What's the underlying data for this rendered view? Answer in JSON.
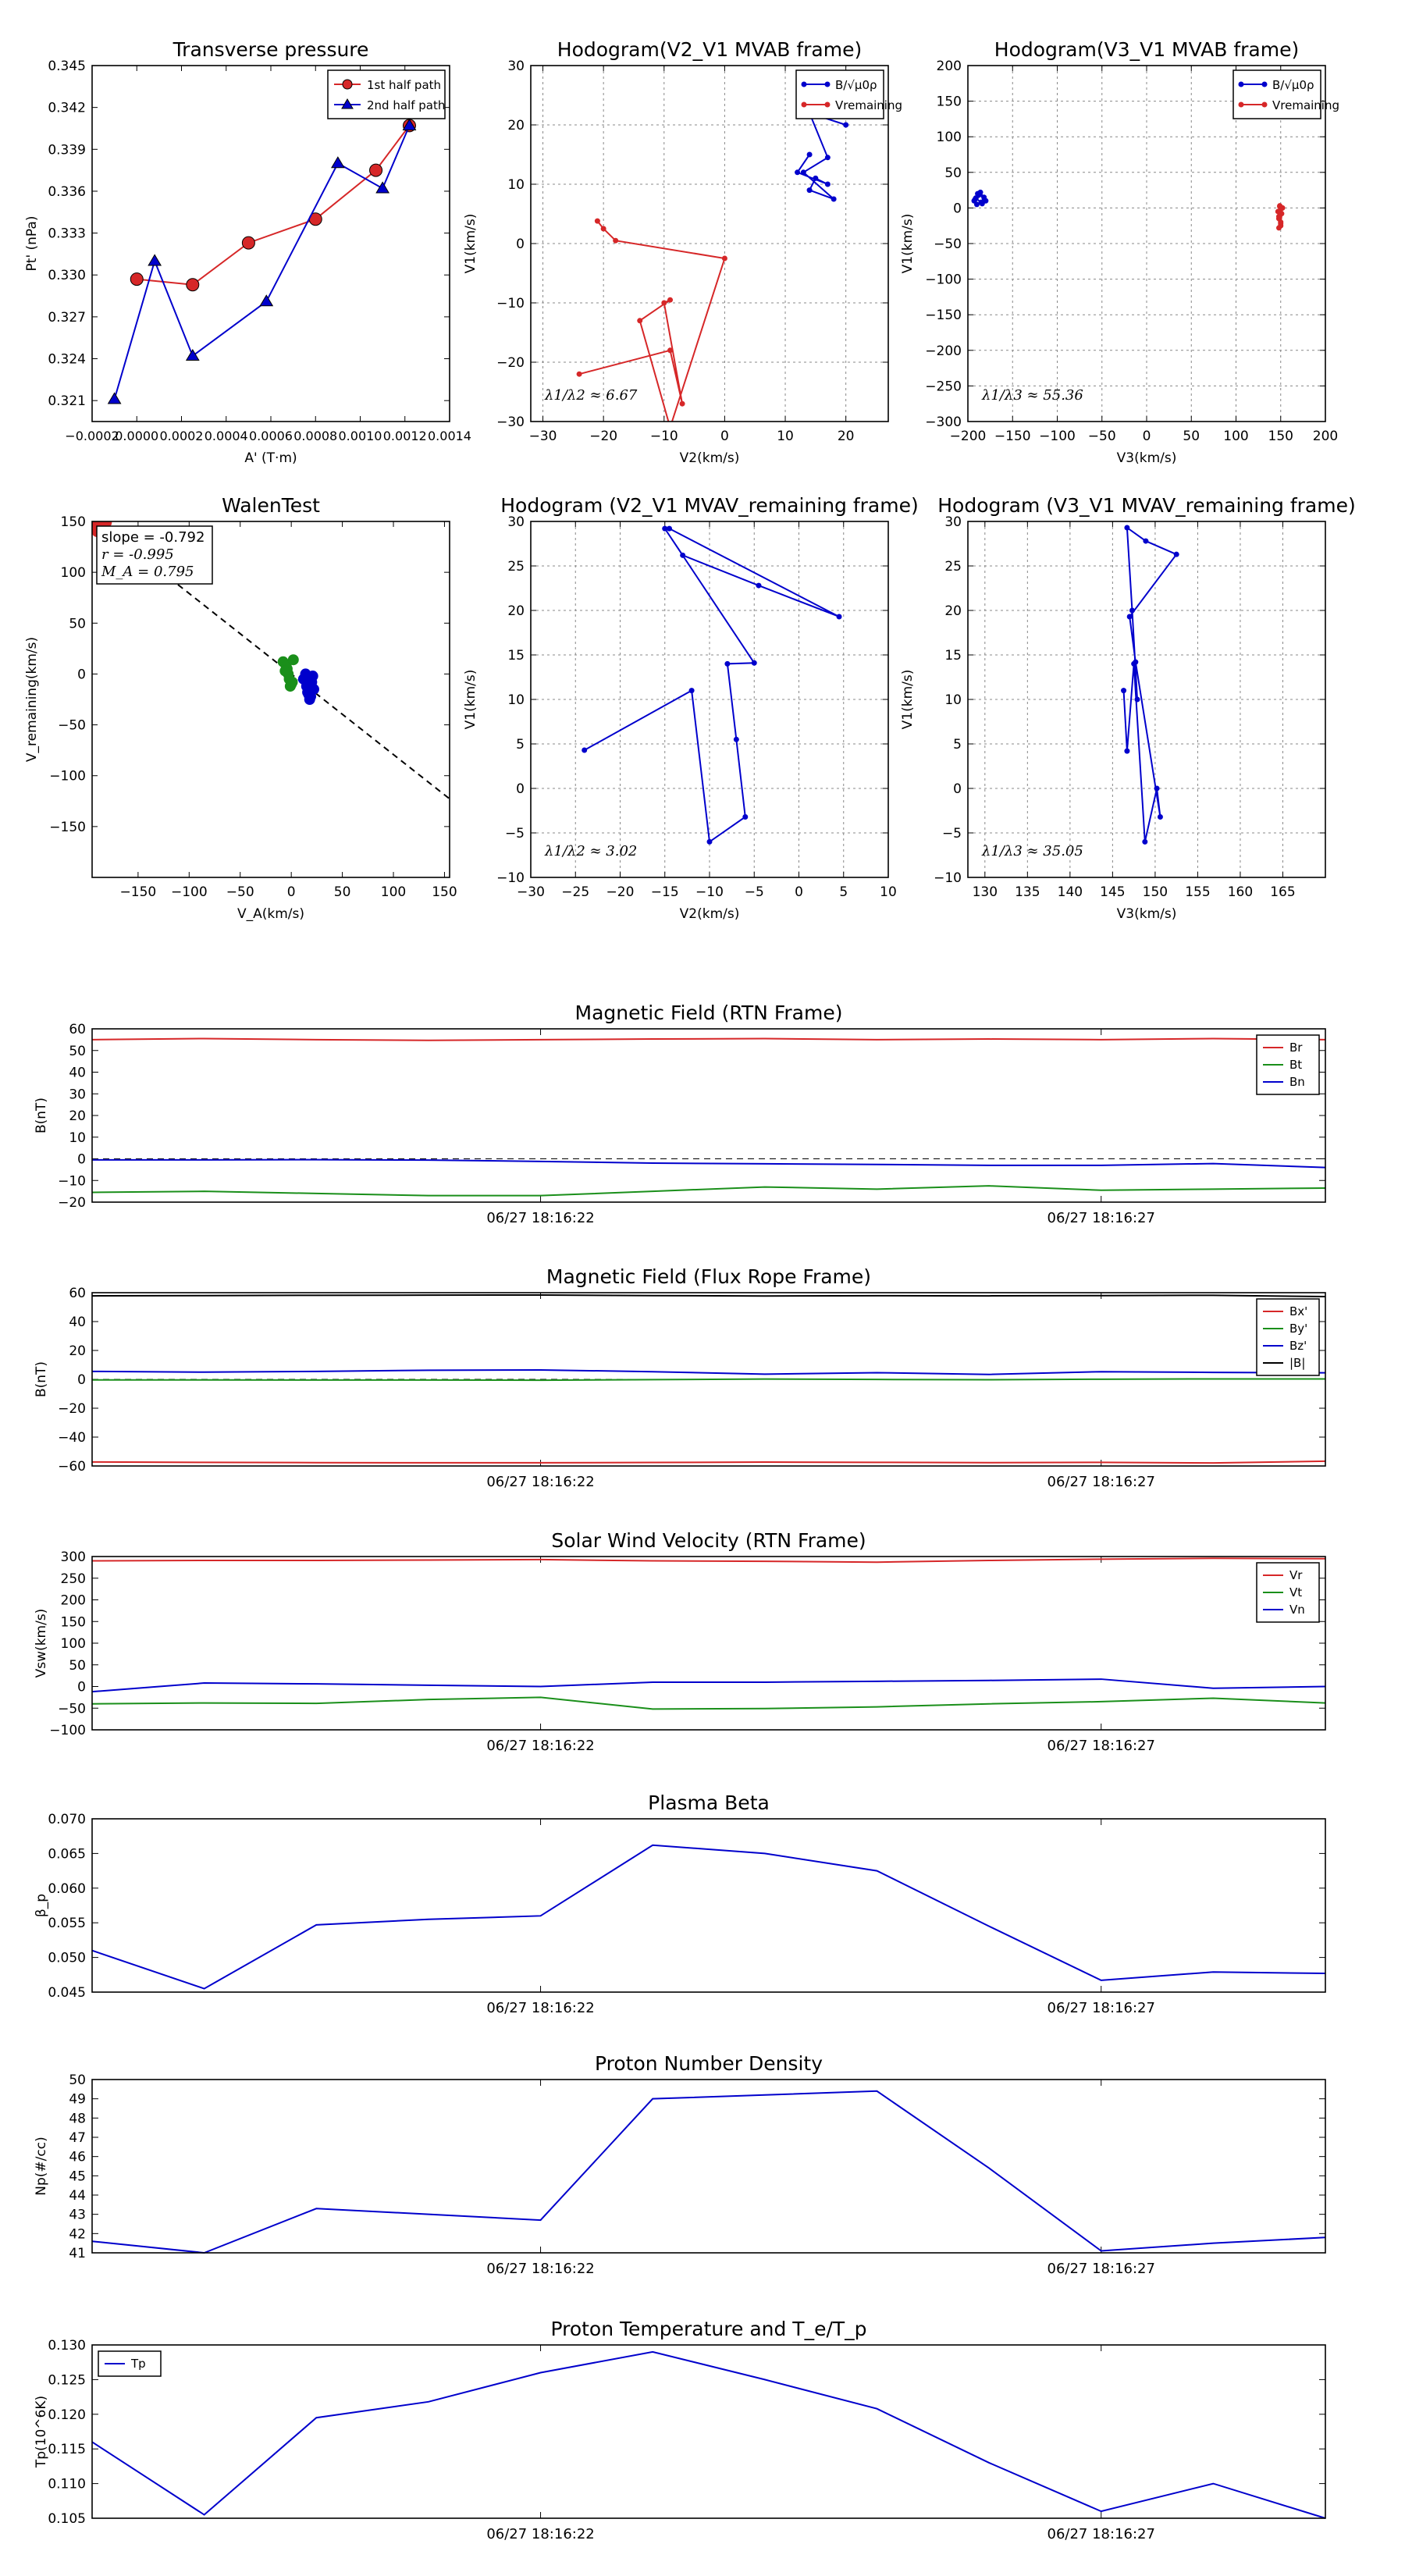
{
  "chart_data": [
    {
      "id": "tp",
      "type": "scatter",
      "title": "Transverse pressure",
      "xlabel": "A' (T·m)",
      "ylabel": "Pt' (nPa)",
      "xlim": [
        -0.0002,
        0.0014
      ],
      "ylim": [
        0.3195,
        0.345
      ],
      "xticks": [
        -0.0002,
        0.0,
        0.0002,
        0.0004,
        0.0006,
        0.0008,
        0.001,
        0.0012,
        0.0014
      ],
      "xticklabels": [
        "−0.0002",
        "0.0000",
        "0.0002",
        "0.0004",
        "0.0006",
        "0.0008",
        "0.0010",
        "0.0012",
        "0.0014"
      ],
      "yticks": [
        0.321,
        0.324,
        0.327,
        0.33,
        0.333,
        0.336,
        0.339,
        0.342,
        0.345
      ],
      "yticklabels": [
        "0.321",
        "0.324",
        "0.327",
        "0.330",
        "0.333",
        "0.336",
        "0.339",
        "0.342",
        "0.345"
      ],
      "grid": false,
      "legend": "top-right",
      "series": [
        {
          "name": "1st half path",
          "color": "#d62728",
          "marker": "circle",
          "x": [
            0.0,
            0.00025,
            0.0005,
            0.0008,
            0.00107,
            0.00122
          ],
          "y": [
            0.3297,
            0.3293,
            0.3323,
            0.334,
            0.3375,
            0.3407
          ]
        },
        {
          "name": "2nd half path",
          "color": "#0000cc",
          "marker": "triangle",
          "x": [
            -0.0001,
            8e-05,
            0.00025,
            0.00058,
            0.0009,
            0.0011,
            0.00122
          ],
          "y": [
            0.3211,
            0.331,
            0.3242,
            0.3281,
            0.338,
            0.3362,
            0.3407
          ]
        }
      ]
    },
    {
      "id": "h1",
      "type": "line",
      "title": "Hodogram(V2_V1 MVAB frame)",
      "xlabel": "V2(km/s)",
      "ylabel": "V1(km/s)",
      "xlim": [
        -32,
        27
      ],
      "ylim": [
        -30,
        30
      ],
      "xticks": [
        -30,
        -20,
        -10,
        0,
        10,
        20
      ],
      "yticks": [
        -30,
        -20,
        -10,
        0,
        10,
        20,
        30
      ],
      "grid": true,
      "legend": "top-right",
      "annotation": "λ1/λ2 ≈ 6.67",
      "series": [
        {
          "name": "B/√μ0ρ",
          "color": "#0000cc",
          "x": [
            20,
            14,
            17,
            13,
            18,
            14,
            15,
            17,
            12,
            14
          ],
          "y": [
            20,
            22,
            14.5,
            12,
            7.5,
            9,
            11,
            10,
            12,
            15
          ]
        },
        {
          "name": "Vremaining",
          "color": "#d62728",
          "x": [
            -24,
            -9,
            -7,
            -10,
            -9,
            -14,
            -9,
            0,
            -18,
            -20,
            -21
          ],
          "y": [
            -22,
            -18,
            -27,
            -10,
            -9.5,
            -13,
            -31,
            -2.5,
            0.5,
            2.5,
            3.8
          ]
        }
      ]
    },
    {
      "id": "h2",
      "type": "line",
      "title": "Hodogram(V3_V1 MVAB frame)",
      "xlabel": "V3(km/s)",
      "ylabel": "V1(km/s)",
      "xlim": [
        -200,
        200
      ],
      "ylim": [
        -300,
        200
      ],
      "xticks": [
        -200,
        -150,
        -100,
        -50,
        0,
        50,
        100,
        150,
        200
      ],
      "yticks": [
        -300,
        -250,
        -200,
        -150,
        -100,
        -50,
        0,
        50,
        100,
        150,
        200
      ],
      "grid": true,
      "legend": "top-right",
      "annotation": "λ1/λ3 ≈ 55.36",
      "series": [
        {
          "name": "B/√μ0ρ",
          "color": "#0000cc",
          "x": [
            -192,
            -188,
            -182,
            -185,
            -190,
            -193,
            -189,
            -186,
            -180,
            -184,
            -191
          ],
          "y": [
            12,
            18,
            15,
            8,
            5,
            10,
            20,
            22,
            10,
            6,
            14
          ]
        },
        {
          "name": "Vremaining",
          "color": "#d62728",
          "x": [
            148,
            150,
            152,
            149,
            147,
            148,
            150,
            151,
            149,
            148,
            150
          ],
          "y": [
            -28,
            -22,
            0,
            2,
            -5,
            -12,
            -20,
            -8,
            3,
            -15,
            -25
          ]
        }
      ]
    },
    {
      "id": "walen",
      "type": "scatter",
      "title": "WalenTest",
      "xlabel": "V_A(km/s)",
      "ylabel": "V_remaining(km/s)",
      "xlim": [
        -195,
        155
      ],
      "ylim": [
        -200,
        150
      ],
      "xticks": [
        -150,
        -100,
        -50,
        0,
        50,
        100,
        150
      ],
      "yticks": [
        -150,
        -100,
        -50,
        0,
        50,
        100,
        150
      ],
      "grid": false,
      "annotation": [
        "slope = -0.792",
        "r = -0.995",
        "M_A = 0.795"
      ],
      "fit_slope": -0.792,
      "series": [
        {
          "name": "red",
          "color": "#d62728",
          "x": [
            -192,
            -188,
            -185,
            -183,
            -190,
            -186,
            -181,
            -187,
            -184
          ],
          "y": [
            148,
            145,
            150,
            142,
            140,
            147,
            149,
            143,
            146
          ]
        },
        {
          "name": "green",
          "color": "#1a8f1a",
          "x": [
            -8,
            -5,
            -3,
            -2,
            0,
            2,
            -4,
            -1,
            -6,
            1
          ],
          "y": [
            12,
            8,
            0,
            -5,
            -10,
            14,
            5,
            -12,
            3,
            -8
          ]
        },
        {
          "name": "blue",
          "color": "#0000cc",
          "x": [
            12,
            15,
            17,
            18,
            20,
            22,
            14,
            16,
            19,
            21
          ],
          "y": [
            -5,
            -12,
            -20,
            -25,
            -8,
            -15,
            0,
            -18,
            -22,
            -2
          ]
        }
      ]
    },
    {
      "id": "h3",
      "type": "line",
      "title": "Hodogram (V2_V1 MVAV_remaining frame)",
      "xlabel": "V2(km/s)",
      "ylabel": "V1(km/s)",
      "xlim": [
        -30,
        10
      ],
      "ylim": [
        -10,
        30
      ],
      "xticks": [
        -30,
        -25,
        -20,
        -15,
        -10,
        -5,
        0,
        5,
        10
      ],
      "yticks": [
        -10,
        -5,
        0,
        5,
        10,
        15,
        20,
        25,
        30
      ],
      "grid": true,
      "annotation": "λ1/λ2 ≈ 3.02",
      "series": [
        {
          "name": "path",
          "color": "#0000cc",
          "x": [
            -24,
            -12,
            -10,
            -6,
            -7,
            -8,
            -5,
            -15,
            -13,
            -4.5,
            4.5,
            -14.5
          ],
          "y": [
            4.3,
            11,
            -6,
            -3.2,
            5.5,
            14,
            14.1,
            29.2,
            26.2,
            22.8,
            19.3,
            29.2
          ]
        }
      ]
    },
    {
      "id": "h4",
      "type": "line",
      "title": "Hodogram (V3_V1 MVAV_remaining frame)",
      "xlabel": "V3(km/s)",
      "ylabel": "V1(km/s)",
      "xlim": [
        128,
        170
      ],
      "ylim": [
        -10,
        30
      ],
      "xticks": [
        130,
        135,
        140,
        145,
        150,
        155,
        160,
        165
      ],
      "yticks": [
        -10,
        -5,
        0,
        5,
        10,
        15,
        20,
        25,
        30
      ],
      "grid": true,
      "annotation": "λ1/λ3 ≈ 35.05",
      "series": [
        {
          "name": "path",
          "color": "#0000cc",
          "x": [
            146.3,
            146.7,
            147.5,
            148.8,
            150.2,
            150.6,
            147.7,
            147.0,
            152.5,
            148.9,
            146.7,
            147.3,
            147.9
          ],
          "y": [
            11,
            4.2,
            14,
            -6,
            0,
            -3.2,
            14.2,
            19.3,
            26.3,
            27.8,
            29.3,
            20,
            10
          ]
        }
      ]
    },
    {
      "id": "mag_rtn",
      "type": "line",
      "title": "Magnetic Field (RTN Frame)",
      "ylabel": "B(nT)",
      "ylim": [
        -20,
        60
      ],
      "yticks": [
        -20,
        -10,
        0,
        10,
        20,
        30,
        40,
        50,
        60
      ],
      "xticklabels": [
        "06/27 18:16:22",
        "06/27 18:16:27"
      ],
      "xtick_index": [
        4,
        9
      ],
      "zero_line": true,
      "legend": "top-right",
      "series": [
        {
          "name": "Br",
          "color": "#d62728",
          "values": [
            55,
            55.5,
            55,
            54.7,
            55,
            55.3,
            55.5,
            55,
            55.3,
            55,
            55.5,
            55
          ]
        },
        {
          "name": "Bt",
          "color": "#1a8f1a",
          "values": [
            -15.5,
            -15,
            -16,
            -17,
            -17,
            -15,
            -13,
            -14,
            -12.5,
            -14.5,
            -14,
            -13.5
          ]
        },
        {
          "name": "Bn",
          "color": "#0000cc",
          "values": [
            -0.5,
            -0.5,
            -0.4,
            -0.6,
            -1.2,
            -2.0,
            -2.3,
            -2.6,
            -3.0,
            -3.0,
            -2.2,
            -4.0
          ]
        }
      ]
    },
    {
      "id": "mag_fr",
      "type": "line",
      "title": "Magnetic Field (Flux Rope Frame)",
      "ylabel": "B(nT)",
      "ylim": [
        -60,
        60
      ],
      "yticks": [
        -60,
        -40,
        -20,
        0,
        20,
        40,
        60
      ],
      "xticklabels": [
        "06/27 18:16:22",
        "06/27 18:16:27"
      ],
      "xtick_index": [
        4,
        9
      ],
      "zero_line": true,
      "legend": "top-right",
      "series": [
        {
          "name": "Bx'",
          "color": "#d62728",
          "values": [
            -57.2,
            -57.5,
            -57.7,
            -57.8,
            -57.8,
            -57.6,
            -57.3,
            -57.5,
            -57.7,
            -57.5,
            -57.9,
            -56.7
          ]
        },
        {
          "name": "By'",
          "color": "#1a8f1a",
          "values": [
            -0.4,
            -0.4,
            -0.5,
            -0.5,
            -0.6,
            -0.2,
            0.2,
            -0.1,
            -0.3,
            0.1,
            0.3,
            0.3
          ]
        },
        {
          "name": "Bz'",
          "color": "#0000cc",
          "values": [
            5.5,
            5.0,
            5.5,
            6.3,
            6.5,
            5.3,
            3.6,
            4.6,
            3.4,
            5.3,
            4.8,
            4.5
          ]
        },
        {
          "name": "|B|",
          "color": "#000000",
          "values": [
            57.8,
            58.0,
            58.2,
            58.3,
            58.4,
            58.0,
            57.7,
            57.9,
            57.8,
            58.0,
            58.2,
            57.3
          ]
        }
      ]
    },
    {
      "id": "vsw",
      "type": "line",
      "title": "Solar Wind Velocity (RTN Frame)",
      "ylabel": "Vsw(km/s)",
      "ylim": [
        -100,
        300
      ],
      "yticks": [
        -100,
        -50,
        0,
        50,
        100,
        150,
        200,
        250,
        300
      ],
      "xticklabels": [
        "06/27 18:16:22",
        "06/27 18:16:27"
      ],
      "xtick_index": [
        4,
        9
      ],
      "legend": "top-right",
      "series": [
        {
          "name": "Vr",
          "color": "#d62728",
          "values": [
            290,
            291,
            291,
            292,
            293,
            290,
            289,
            287,
            291,
            294,
            296,
            295
          ]
        },
        {
          "name": "Vt",
          "color": "#1a8f1a",
          "values": [
            -40,
            -38,
            -39,
            -30,
            -25,
            -52,
            -51,
            -47,
            -40,
            -35,
            -27,
            -38
          ]
        },
        {
          "name": "Vn",
          "color": "#0000cc",
          "values": [
            -12,
            8,
            6,
            3,
            0,
            10,
            10,
            12,
            14,
            17,
            -4,
            0
          ]
        }
      ]
    },
    {
      "id": "beta",
      "type": "line",
      "title": "Plasma Beta",
      "ylabel": "β_p",
      "ylim": [
        0.045,
        0.07
      ],
      "yticks": [
        0.045,
        0.05,
        0.055,
        0.06,
        0.065,
        0.07
      ],
      "yticklabels": [
        "0.045",
        "0.050",
        "0.055",
        "0.060",
        "0.065",
        "0.070"
      ],
      "xticklabels": [
        "06/27 18:16:22",
        "06/27 18:16:27"
      ],
      "xtick_index": [
        4,
        9
      ],
      "series": [
        {
          "name": "beta",
          "color": "#0000cc",
          "values": [
            0.051,
            0.0455,
            0.0547,
            0.0555,
            0.056,
            0.0662,
            0.065,
            0.0625,
            0.0545,
            0.0467,
            0.0479,
            0.0477
          ]
        }
      ]
    },
    {
      "id": "np",
      "type": "line",
      "title": "Proton Number Density",
      "ylabel": "Np(#/cc)",
      "ylim": [
        41,
        50
      ],
      "yticks": [
        41,
        42,
        43,
        44,
        45,
        46,
        47,
        48,
        49,
        50
      ],
      "xticklabels": [
        "06/27 18:16:22",
        "06/27 18:16:27"
      ],
      "xtick_index": [
        4,
        9
      ],
      "series": [
        {
          "name": "Np",
          "color": "#0000cc",
          "values": [
            41.6,
            41.0,
            43.3,
            43.0,
            42.7,
            49.0,
            49.2,
            49.4,
            45.4,
            41.1,
            41.5,
            41.8
          ]
        }
      ]
    },
    {
      "id": "tp_temp",
      "type": "line",
      "title": "Proton Temperature and T_e/T_p",
      "ylabel": "Tp(10^6K)",
      "ylim": [
        0.105,
        0.13
      ],
      "yticks": [
        0.105,
        0.11,
        0.115,
        0.12,
        0.125,
        0.13
      ],
      "yticklabels": [
        "0.105",
        "0.110",
        "0.115",
        "0.120",
        "0.125",
        "0.130"
      ],
      "xticklabels": [
        "06/27 18:16:22",
        "06/27 18:16:27"
      ],
      "xtick_index": [
        4,
        9
      ],
      "legend": "top-left",
      "series": [
        {
          "name": "Tp",
          "color": "#0000cc",
          "values": [
            0.116,
            0.1055,
            0.1195,
            0.1218,
            0.126,
            0.129,
            0.125,
            0.1208,
            0.113,
            0.106,
            0.11,
            0.105
          ]
        }
      ]
    }
  ]
}
